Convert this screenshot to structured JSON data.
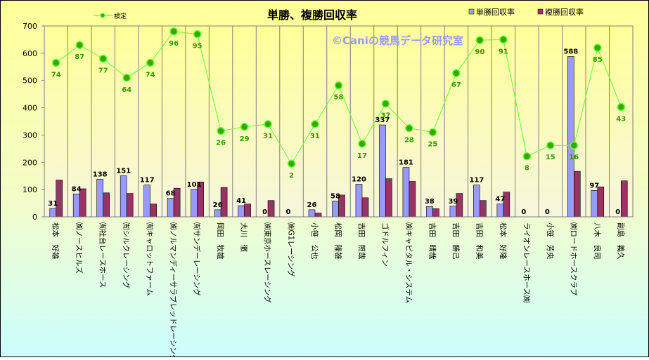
{
  "chart_data": {
    "type": "bar",
    "title": "単勝、複勝回収率",
    "watermark": "©Caniの競馬データ研究室",
    "legend": {
      "placement": "top",
      "line_label": "検定",
      "bar1_label": "単勝回収率",
      "bar2_label": "複勝回収率"
    },
    "ylim": [
      0,
      700
    ],
    "yticks": [
      0,
      100,
      200,
      300,
      400,
      500,
      600,
      700
    ],
    "grid": "vertical",
    "categories": [
      "松本　好雄",
      "㈱ノースヒルズ",
      "㈲社台レースホース",
      "㈲シルクレーシング",
      "㈲キャロットファーム",
      "㈱ノルマンディーサラブレッドレーシング",
      "㈲サンデーレーシング",
      "岡田　牧雄",
      "大川　徹",
      "㈱東京ホースレーシング",
      "㈱G1レーシング",
      "小笹　公也",
      "松岡　隆雄",
      "吉田　照哉",
      "ゴドルフィン",
      "㈱キャピタル・システム",
      "吉田　晴哉",
      "吉田　勝己",
      "吉田　和美",
      "松本　好隆",
      "ライオンレースホース㈱",
      "小笹　芳央",
      "㈱ロードホースクラブ",
      "八木　良司",
      "副島　義久"
    ],
    "series": [
      {
        "name": "単勝回収率",
        "type": "bar",
        "color": "#9999ff",
        "values": [
          31,
          84,
          138,
          151,
          117,
          68,
          101,
          26,
          41,
          0,
          0,
          26,
          58,
          120,
          337,
          181,
          38,
          39,
          117,
          47,
          0,
          0,
          588,
          97,
          0
        ]
      },
      {
        "name": "複勝回収率",
        "type": "bar",
        "color": "#993366",
        "values": [
          135,
          103,
          88,
          86,
          47,
          105,
          128,
          108,
          47,
          60,
          0,
          14,
          80,
          70,
          140,
          130,
          30,
          86,
          60,
          91,
          0,
          0,
          167,
          110,
          132
        ]
      },
      {
        "name": "検定",
        "type": "line",
        "color": "#66ff33",
        "values": [
          565,
          630,
          580,
          510,
          565,
          680,
          670,
          315,
          330,
          340,
          195,
          340,
          482,
          268,
          415,
          325,
          310,
          527,
          648,
          650,
          222,
          262,
          262,
          620,
          403
        ]
      }
    ],
    "single_labels": [
      "31",
      "84",
      "138",
      "151",
      "117",
      "68",
      "101",
      "26",
      "41",
      "0",
      "0",
      "26",
      "58",
      "120",
      "337",
      "181",
      "38",
      "39",
      "117",
      "47",
      "0",
      "0",
      "588",
      "97",
      "0"
    ],
    "line_labels": [
      "74",
      "87",
      "77",
      "64",
      "74",
      "96",
      "95",
      "26",
      "29",
      "31",
      "2",
      "31",
      "58",
      "17",
      "37",
      "28",
      "25",
      "67",
      "90",
      "91",
      "8",
      "15",
      "16",
      "85",
      "43"
    ]
  }
}
